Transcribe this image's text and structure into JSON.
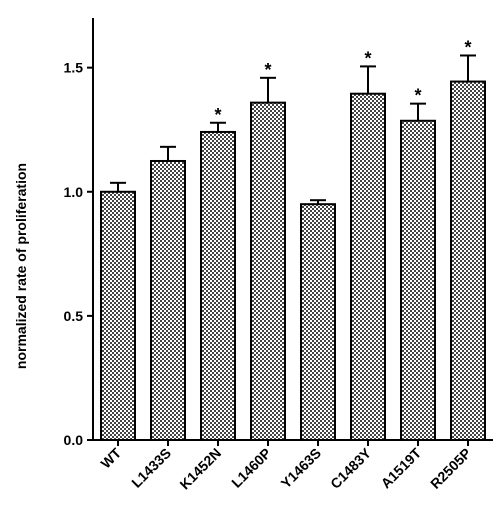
{
  "chart_data": {
    "type": "bar",
    "ylabel": "normalized rate of proliferation",
    "categories": [
      "WT",
      "L1433S",
      "K1452N",
      "L1460P",
      "Y1463S",
      "C1483Y",
      "A1519T",
      "R2505P"
    ],
    "values": [
      1.0,
      1.124,
      1.241,
      1.359,
      0.95,
      1.395,
      1.286,
      1.444
    ],
    "errors": [
      0.036,
      0.057,
      0.037,
      0.1,
      0.016,
      0.11,
      0.069,
      0.105
    ],
    "annotations": [
      null,
      null,
      "*",
      "*",
      null,
      "*",
      "*",
      "*"
    ],
    "color": "#444444",
    "ylim": [
      0,
      1.7
    ],
    "yticks": [
      {
        "value": 0,
        "label": "0.0"
      },
      0.5,
      {
        "value": 1,
        "label": "1.0"
      },
      1.5
    ]
  }
}
